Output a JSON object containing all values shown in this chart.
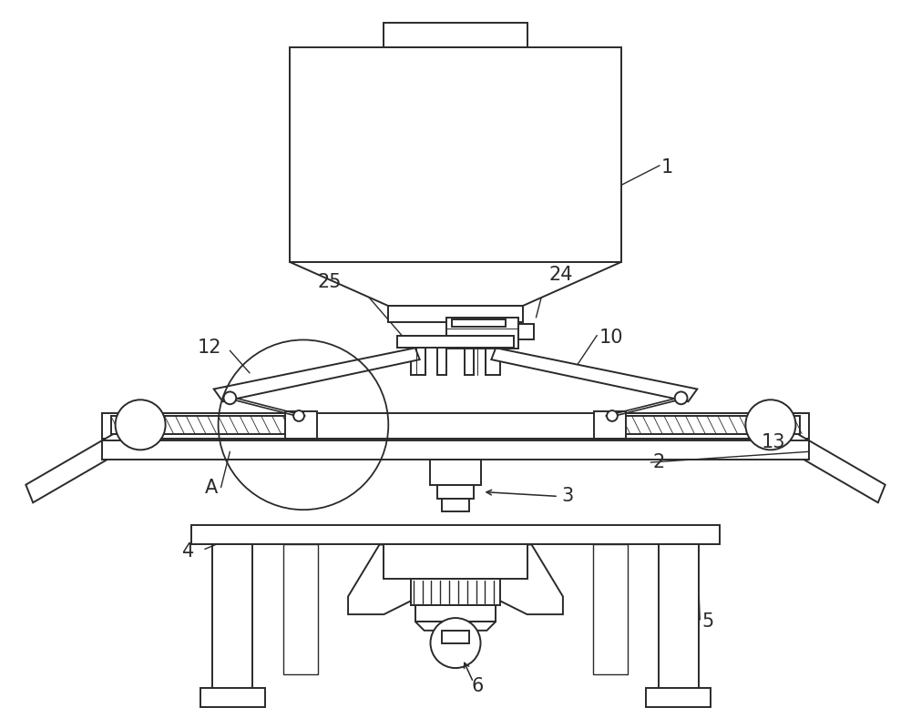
{
  "bg_color": "#ffffff",
  "line_color": "#2a2a2a",
  "lw": 1.4,
  "figsize": [
    10.0,
    8.0
  ],
  "dpi": 100
}
